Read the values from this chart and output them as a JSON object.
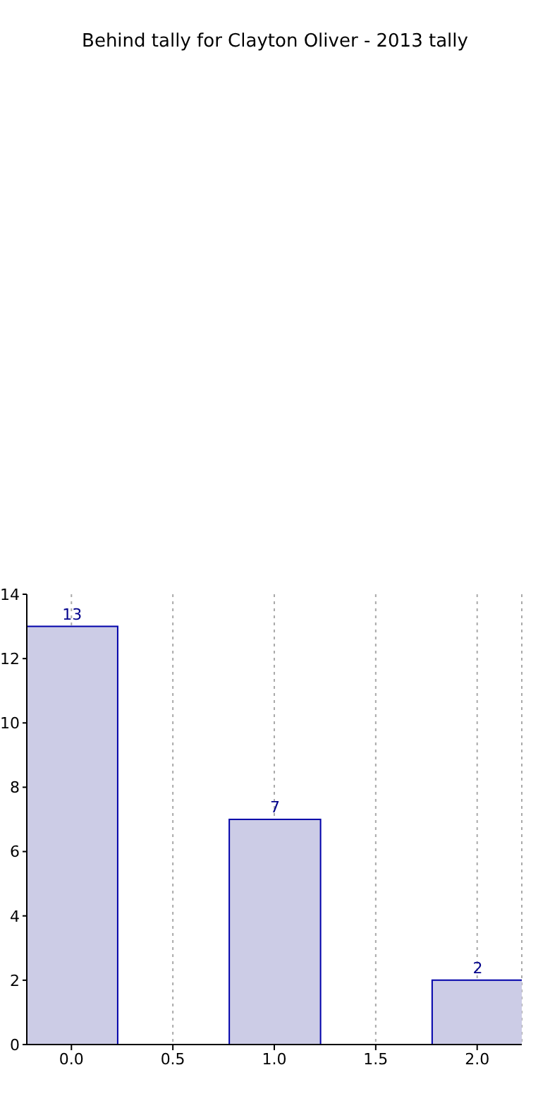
{
  "chart_data": {
    "type": "bar",
    "title": "Behind tally for Clayton Oliver - 2013 tally",
    "x": [
      0,
      1,
      2
    ],
    "values": [
      13,
      7,
      2
    ],
    "color": "#ccccE6",
    "xlim": [
      -0.22,
      2.22
    ],
    "xticks": [
      {
        "value": 0,
        "label": "0.0"
      },
      {
        "value": 0.5,
        "label": "0.5"
      },
      {
        "value": 1,
        "label": "1.0"
      },
      {
        "value": 1.5,
        "label": "1.5"
      },
      {
        "value": 2,
        "label": "2.0"
      }
    ],
    "ylim": [
      0,
      14
    ],
    "yticks": [
      0,
      2,
      4,
      6,
      8,
      10,
      12,
      14
    ],
    "grid": "x",
    "data_labels": true
  }
}
